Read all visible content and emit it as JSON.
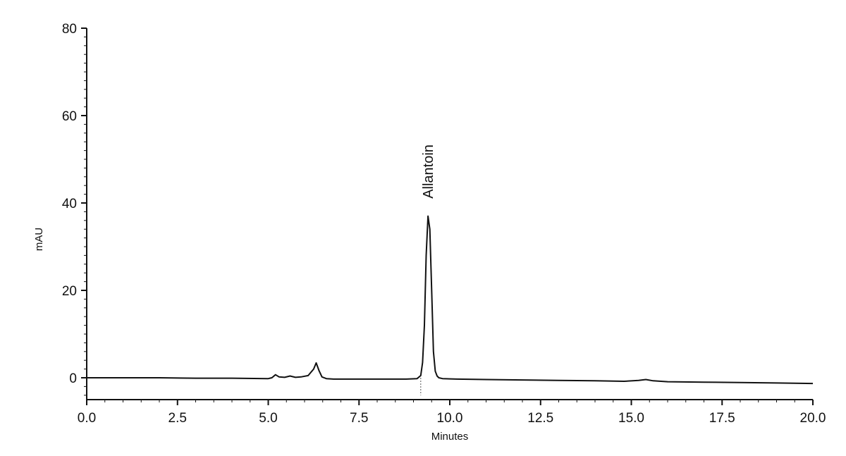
{
  "chart_data": {
    "type": "line",
    "xlabel": "Minutes",
    "ylabel": "mAU",
    "xlim": [
      0.0,
      20.0
    ],
    "ylim": [
      -5,
      80
    ],
    "x_ticks": [
      "0.0",
      "2.5",
      "5.0",
      "7.5",
      "10.0",
      "12.5",
      "15.0",
      "17.5",
      "20.0"
    ],
    "y_ticks": [
      "0",
      "20",
      "40",
      "60",
      "80"
    ],
    "grid": false,
    "legend": "none",
    "line_color": "#111111",
    "series": [
      {
        "x": [
          0.0,
          1.0,
          2.0,
          3.0,
          4.0,
          5.0,
          5.1,
          5.2,
          5.3,
          5.45,
          5.6,
          5.75,
          5.9,
          6.1,
          6.25,
          6.32,
          6.4,
          6.48,
          6.6,
          6.8,
          7.2,
          8.0,
          8.8,
          9.1,
          9.2,
          9.25,
          9.3,
          9.35,
          9.4,
          9.45,
          9.5,
          9.55,
          9.6,
          9.65,
          9.7,
          9.8,
          10.2,
          11.0,
          12.0,
          13.0,
          14.0,
          14.8,
          15.2,
          15.4,
          15.6,
          16.0,
          17.0,
          18.0,
          19.0,
          20.0
        ],
        "y": [
          0.0,
          0.0,
          0.0,
          -0.1,
          -0.1,
          -0.2,
          0.0,
          0.7,
          0.2,
          0.1,
          0.4,
          0.1,
          0.2,
          0.5,
          2.0,
          3.4,
          1.6,
          0.2,
          -0.2,
          -0.3,
          -0.3,
          -0.3,
          -0.3,
          -0.2,
          0.5,
          3.5,
          12.0,
          28.0,
          37.0,
          34.0,
          20.0,
          6.0,
          1.5,
          0.4,
          0.0,
          -0.2,
          -0.3,
          -0.4,
          -0.5,
          -0.6,
          -0.7,
          -0.8,
          -0.6,
          -0.4,
          -0.7,
          -0.9,
          -1.0,
          -1.1,
          -1.2,
          -1.3
        ]
      }
    ],
    "annotations": [
      {
        "text": "Allantoin",
        "x": 9.4,
        "y": 41
      }
    ]
  }
}
